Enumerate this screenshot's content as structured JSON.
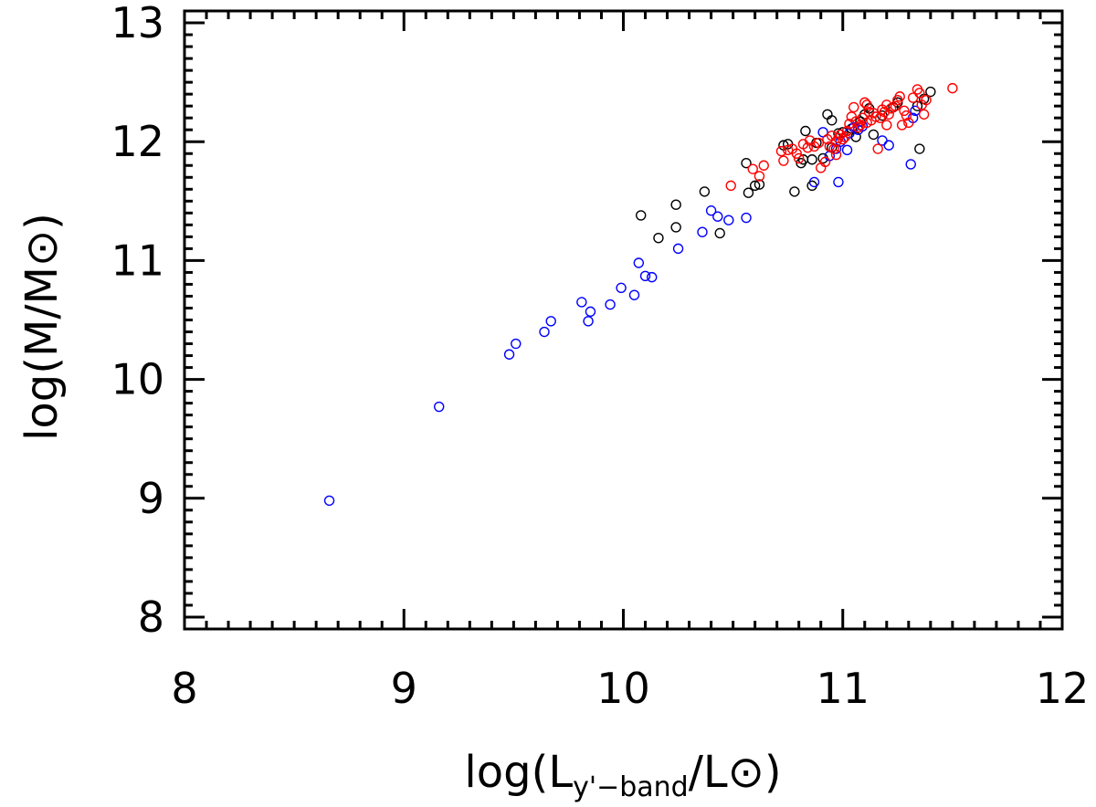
{
  "chart_data": {
    "type": "scatter",
    "title": "",
    "xlabel": {
      "prefix": "log(L",
      "subscript": "y'−band",
      "middle": "/L",
      "sun_symbol": "⊙",
      "suffix": ")"
    },
    "ylabel": {
      "prefix": "log(M/M",
      "sun_symbol": "⊙",
      "suffix": ")"
    },
    "xlim": [
      8,
      12
    ],
    "ylim": [
      7.9,
      13.1
    ],
    "x_ticks": [
      8,
      9,
      10,
      11,
      12
    ],
    "y_ticks": [
      8,
      9,
      10,
      11,
      12,
      13
    ],
    "x_tick_labels": [
      "8",
      "9",
      "10",
      "11",
      "12"
    ],
    "y_tick_labels": [
      "8",
      "9",
      "10",
      "11",
      "12",
      "13"
    ],
    "marker": "open-circle",
    "grid": false,
    "series": [
      {
        "name": "black",
        "color": "#000000",
        "points": [
          [
            10.08,
            11.38
          ],
          [
            10.24,
            11.47
          ],
          [
            10.24,
            11.28
          ],
          [
            10.16,
            11.19
          ],
          [
            10.37,
            11.58
          ],
          [
            10.44,
            11.23
          ],
          [
            10.56,
            11.82
          ],
          [
            10.57,
            11.57
          ],
          [
            10.6,
            11.63
          ],
          [
            10.62,
            11.64
          ],
          [
            10.73,
            11.97
          ],
          [
            10.75,
            11.98
          ],
          [
            10.78,
            11.58
          ],
          [
            10.81,
            11.82
          ],
          [
            10.82,
            11.85
          ],
          [
            10.83,
            12.09
          ],
          [
            10.86,
            11.85
          ],
          [
            10.86,
            11.63
          ],
          [
            10.88,
            11.99
          ],
          [
            10.91,
            11.86
          ],
          [
            10.93,
            12.23
          ],
          [
            10.95,
            12.18
          ],
          [
            10.98,
            12.07
          ],
          [
            11.0,
            12.08
          ],
          [
            11.04,
            12.11
          ],
          [
            11.08,
            12.17
          ],
          [
            11.1,
            12.23
          ],
          [
            11.12,
            12.28
          ],
          [
            11.14,
            12.06
          ],
          [
            11.18,
            12.22
          ],
          [
            11.23,
            12.29
          ],
          [
            11.25,
            12.33
          ],
          [
            11.34,
            12.3
          ],
          [
            11.35,
            11.94
          ],
          [
            11.37,
            12.36
          ],
          [
            11.4,
            12.42
          ],
          [
            10.95,
            11.95
          ],
          [
            11.06,
            12.04
          ]
        ]
      },
      {
        "name": "blue",
        "color": "#0000ff",
        "points": [
          [
            8.66,
            8.98
          ],
          [
            9.16,
            9.77
          ],
          [
            9.48,
            10.21
          ],
          [
            9.51,
            10.3
          ],
          [
            9.64,
            10.4
          ],
          [
            9.67,
            10.49
          ],
          [
            9.81,
            10.65
          ],
          [
            9.84,
            10.49
          ],
          [
            9.85,
            10.57
          ],
          [
            9.94,
            10.63
          ],
          [
            9.99,
            10.77
          ],
          [
            10.05,
            10.71
          ],
          [
            10.07,
            10.98
          ],
          [
            10.1,
            10.87
          ],
          [
            10.13,
            10.86
          ],
          [
            10.25,
            11.1
          ],
          [
            10.36,
            11.24
          ],
          [
            10.4,
            11.42
          ],
          [
            10.43,
            11.37
          ],
          [
            10.48,
            11.34
          ],
          [
            10.56,
            11.36
          ],
          [
            10.87,
            11.66
          ],
          [
            10.91,
            12.08
          ],
          [
            10.94,
            11.88
          ],
          [
            10.97,
            11.94
          ],
          [
            10.98,
            11.66
          ],
          [
            11.02,
            11.93
          ],
          [
            11.03,
            12.07
          ],
          [
            11.05,
            12.12
          ],
          [
            11.09,
            12.13
          ],
          [
            11.18,
            12.01
          ],
          [
            11.21,
            11.97
          ],
          [
            11.31,
            11.81
          ],
          [
            11.32,
            12.2
          ],
          [
            11.33,
            12.26
          ],
          [
            10.99,
            12.0
          ],
          [
            11.07,
            12.1
          ]
        ]
      },
      {
        "name": "red",
        "color": "#ff0000",
        "points": [
          [
            10.49,
            11.63
          ],
          [
            10.59,
            11.77
          ],
          [
            10.62,
            11.71
          ],
          [
            10.64,
            11.8
          ],
          [
            10.72,
            11.92
          ],
          [
            10.73,
            11.84
          ],
          [
            10.75,
            11.93
          ],
          [
            10.77,
            11.94
          ],
          [
            10.79,
            11.9
          ],
          [
            10.8,
            11.86
          ],
          [
            10.82,
            11.98
          ],
          [
            10.84,
            11.95
          ],
          [
            10.85,
            12.01
          ],
          [
            10.87,
            11.96
          ],
          [
            10.89,
            11.99
          ],
          [
            10.9,
            11.78
          ],
          [
            10.92,
            11.83
          ],
          [
            10.93,
            12.02
          ],
          [
            10.94,
            11.96
          ],
          [
            10.95,
            12.05
          ],
          [
            10.96,
            11.94
          ],
          [
            10.97,
            12.0
          ],
          [
            10.98,
            12.03
          ],
          [
            10.99,
            12.06
          ],
          [
            11.0,
            12.02
          ],
          [
            11.01,
            12.04
          ],
          [
            11.02,
            12.09
          ],
          [
            11.03,
            12.15
          ],
          [
            11.04,
            12.21
          ],
          [
            11.05,
            12.29
          ],
          [
            11.06,
            12.17
          ],
          [
            11.07,
            12.12
          ],
          [
            11.08,
            12.14
          ],
          [
            11.09,
            12.2
          ],
          [
            11.1,
            12.33
          ],
          [
            11.11,
            12.16
          ],
          [
            11.12,
            12.25
          ],
          [
            11.13,
            12.18
          ],
          [
            11.14,
            12.24
          ],
          [
            11.15,
            12.21
          ],
          [
            11.16,
            11.94
          ],
          [
            11.17,
            12.2
          ],
          [
            11.18,
            12.27
          ],
          [
            11.19,
            12.25
          ],
          [
            11.2,
            12.31
          ],
          [
            11.21,
            12.23
          ],
          [
            11.22,
            12.28
          ],
          [
            11.24,
            12.3
          ],
          [
            11.25,
            12.35
          ],
          [
            11.26,
            12.38
          ],
          [
            11.27,
            12.14
          ],
          [
            11.28,
            12.26
          ],
          [
            11.29,
            12.22
          ],
          [
            11.3,
            12.16
          ],
          [
            11.32,
            12.37
          ],
          [
            11.34,
            12.44
          ],
          [
            11.35,
            12.41
          ],
          [
            11.36,
            12.31
          ],
          [
            11.37,
            12.23
          ],
          [
            11.38,
            12.35
          ],
          [
            11.5,
            12.45
          ],
          [
            11.11,
            12.31
          ],
          [
            11.2,
            12.14
          ],
          [
            10.97,
            11.89
          ]
        ]
      }
    ]
  }
}
